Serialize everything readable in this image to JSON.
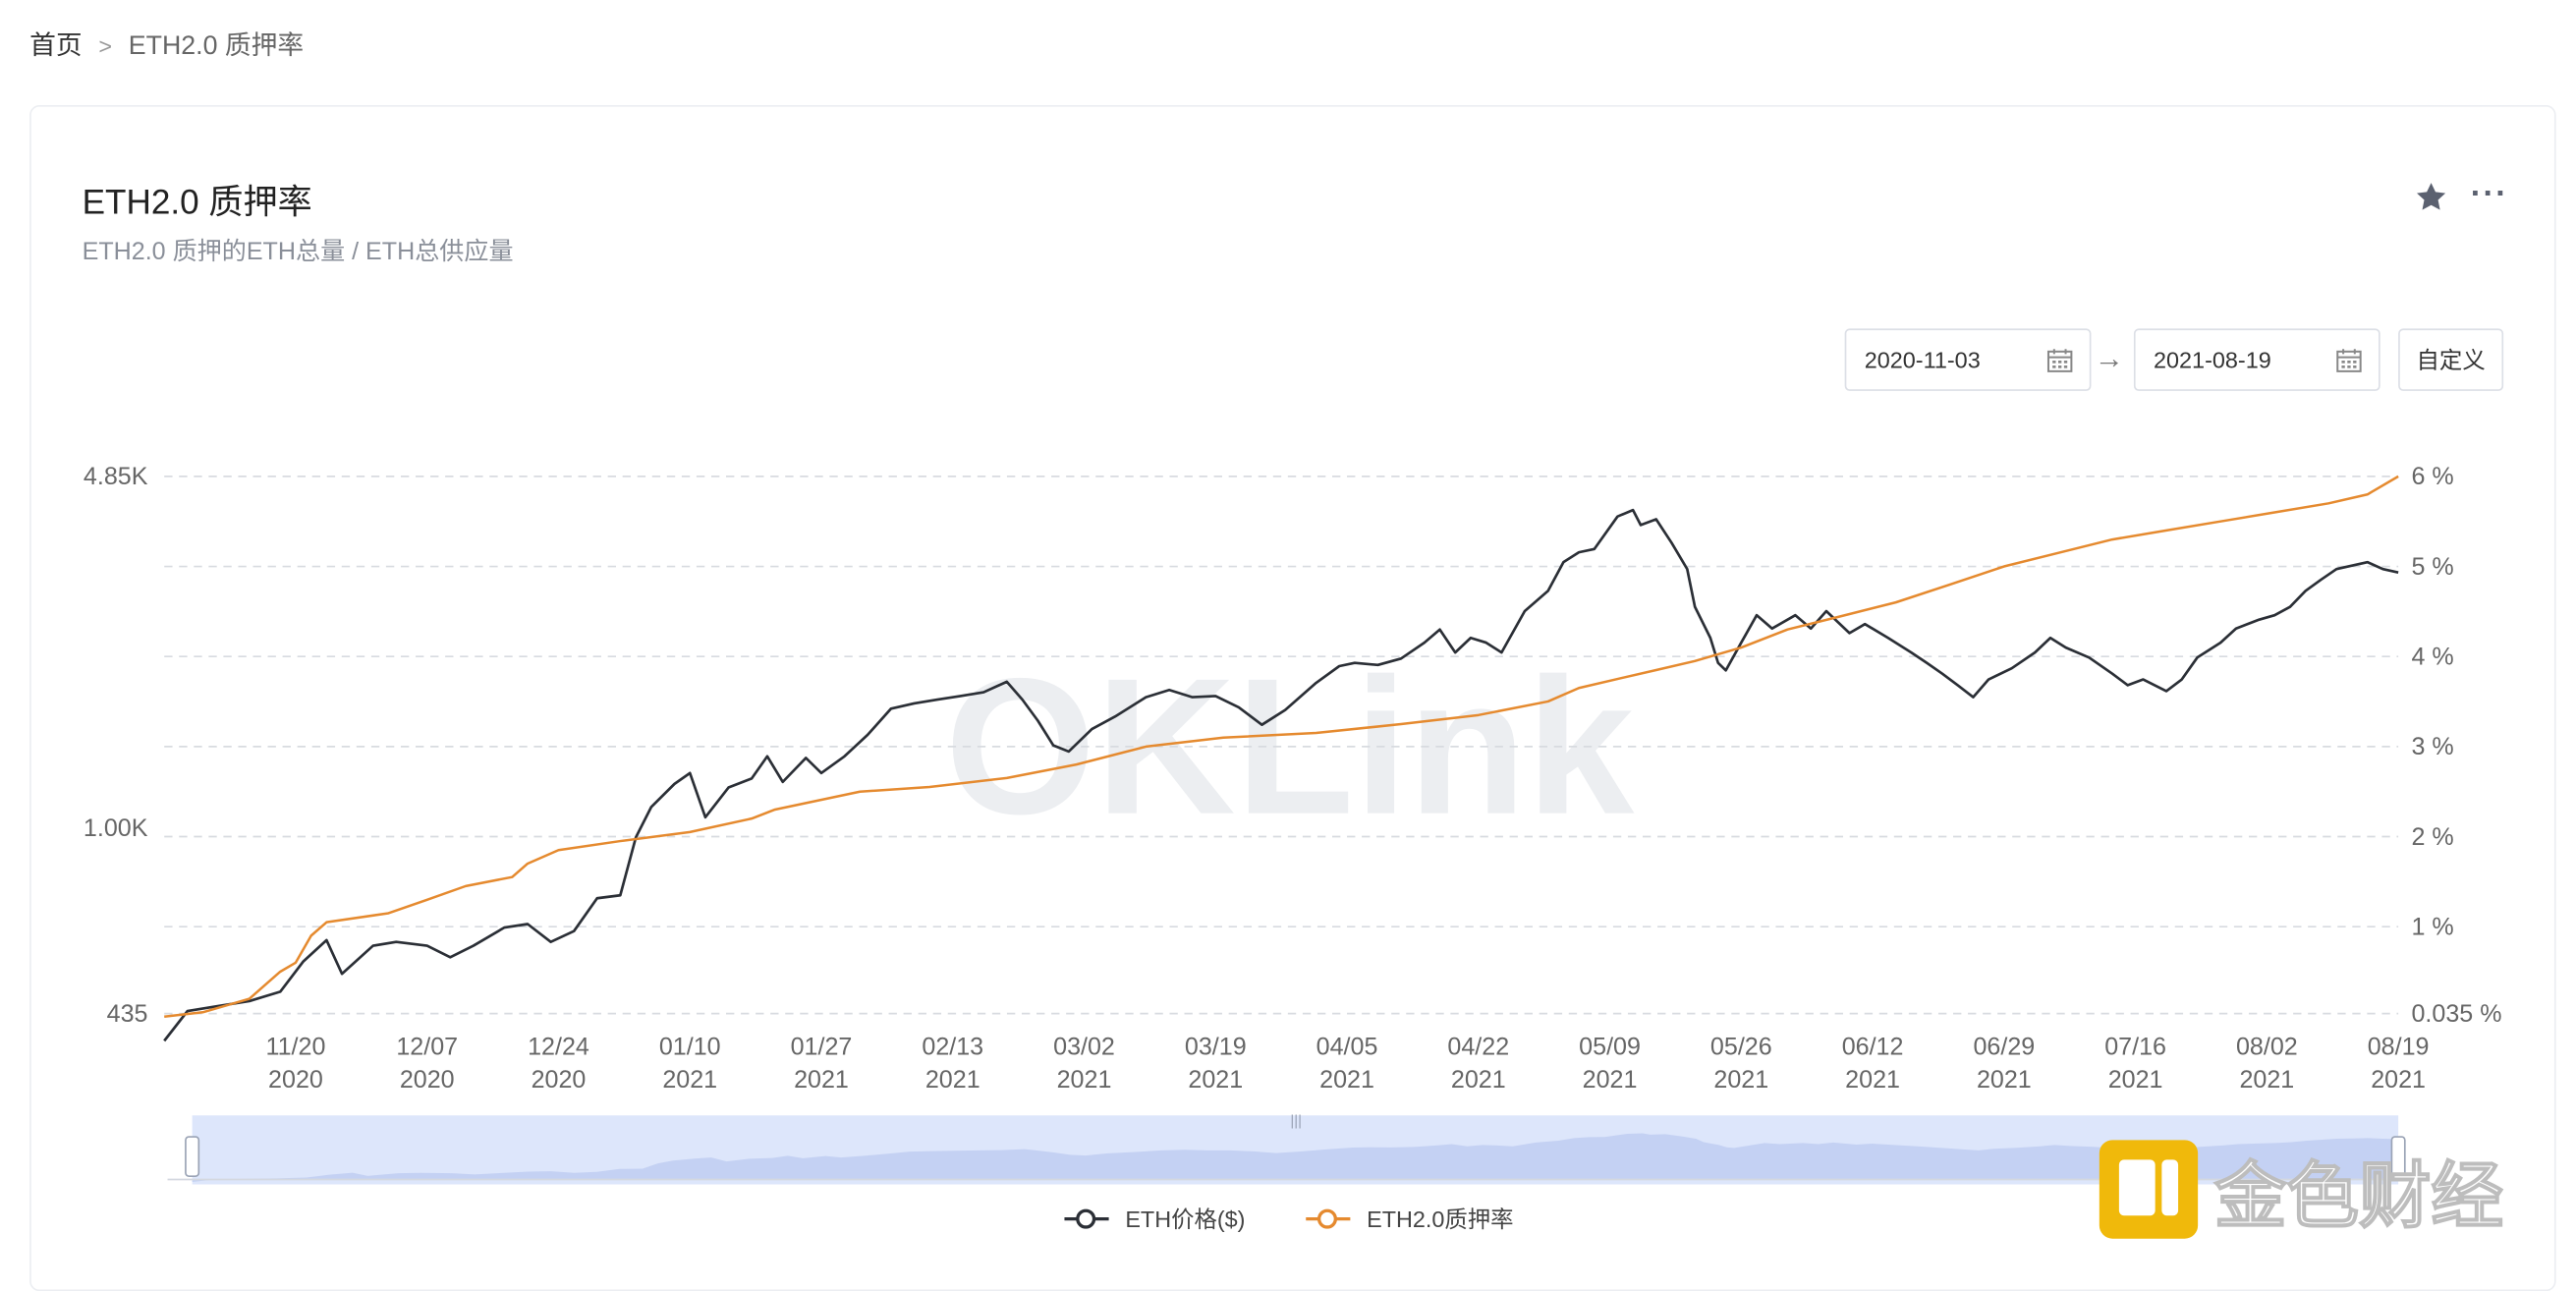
{
  "breadcrumb": {
    "home": "首页",
    "separator": ">",
    "current": "ETH2.0 质押率"
  },
  "card": {
    "title": "ETH2.0 质押率",
    "subtitle": "ETH2.0 质押的ETH总量 / ETH总供应量",
    "more_label": "···"
  },
  "date_range": {
    "start": "2020-11-03",
    "end": "2021-08-19",
    "arrow": "→",
    "custom_label": "自定义"
  },
  "watermark": {
    "text": "OKLink"
  },
  "brand_logo": {
    "text": "金色财经",
    "color": "#f0b90b"
  },
  "colors": {
    "price_line": "#2b2f36",
    "rate_line": "#e58a2f",
    "grid": "#d8dbe0",
    "slider_fill": "#dde6fb"
  },
  "chart_data": {
    "type": "line",
    "title": "ETH2.0 质押率",
    "subtitle": "ETH2.0 质押的ETH总量 / ETH总供应量",
    "x_ticks": [
      {
        "date": "11/20",
        "year": "2020"
      },
      {
        "date": "12/07",
        "year": "2020"
      },
      {
        "date": "12/24",
        "year": "2020"
      },
      {
        "date": "01/10",
        "year": "2021"
      },
      {
        "date": "01/27",
        "year": "2021"
      },
      {
        "date": "02/13",
        "year": "2021"
      },
      {
        "date": "03/02",
        "year": "2021"
      },
      {
        "date": "03/19",
        "year": "2021"
      },
      {
        "date": "04/05",
        "year": "2021"
      },
      {
        "date": "04/22",
        "year": "2021"
      },
      {
        "date": "05/09",
        "year": "2021"
      },
      {
        "date": "05/26",
        "year": "2021"
      },
      {
        "date": "06/12",
        "year": "2021"
      },
      {
        "date": "06/29",
        "year": "2021"
      },
      {
        "date": "07/16",
        "year": "2021"
      },
      {
        "date": "08/02",
        "year": "2021"
      },
      {
        "date": "08/19",
        "year": "2021"
      }
    ],
    "x_range": [
      "2020-11-03",
      "2021-08-19"
    ],
    "y_left": {
      "scale": "log",
      "tick_labels": [
        "4.85K",
        "1.00K",
        "435"
      ],
      "tick_values": [
        4850,
        1000,
        435
      ],
      "range": [
        435,
        4850
      ]
    },
    "y_right": {
      "scale": "linear",
      "tick_labels": [
        "6 %",
        "5 %",
        "4 %",
        "3 %",
        "2 %",
        "1 %",
        "0.035 %"
      ],
      "tick_values": [
        6,
        5,
        4,
        3,
        2,
        1,
        0.035
      ],
      "range": [
        0.035,
        6
      ]
    },
    "grid": true,
    "legend_position": "bottom-center",
    "series": [
      {
        "name": "ETH价格($)",
        "axis": "left",
        "color": "#2b2f36",
        "points": [
          [
            "2020-11-03",
            385
          ],
          [
            "2020-11-06",
            440
          ],
          [
            "2020-11-10",
            450
          ],
          [
            "2020-11-14",
            460
          ],
          [
            "2020-11-18",
            480
          ],
          [
            "2020-11-21",
            550
          ],
          [
            "2020-11-24",
            605
          ],
          [
            "2020-11-26",
            520
          ],
          [
            "2020-11-30",
            590
          ],
          [
            "2020-12-03",
            600
          ],
          [
            "2020-12-07",
            590
          ],
          [
            "2020-12-10",
            560
          ],
          [
            "2020-12-13",
            590
          ],
          [
            "2020-12-17",
            640
          ],
          [
            "2020-12-20",
            650
          ],
          [
            "2020-12-23",
            600
          ],
          [
            "2020-12-26",
            630
          ],
          [
            "2020-12-29",
            730
          ],
          [
            "2021-01-01",
            740
          ],
          [
            "2021-01-03",
            960
          ],
          [
            "2021-01-05",
            1100
          ],
          [
            "2021-01-08",
            1220
          ],
          [
            "2021-01-10",
            1280
          ],
          [
            "2021-01-12",
            1050
          ],
          [
            "2021-01-15",
            1200
          ],
          [
            "2021-01-18",
            1250
          ],
          [
            "2021-01-20",
            1380
          ],
          [
            "2021-01-22",
            1230
          ],
          [
            "2021-01-25",
            1370
          ],
          [
            "2021-01-27",
            1280
          ],
          [
            "2021-01-30",
            1380
          ],
          [
            "2021-02-02",
            1520
          ],
          [
            "2021-02-05",
            1710
          ],
          [
            "2021-02-08",
            1750
          ],
          [
            "2021-02-11",
            1780
          ],
          [
            "2021-02-14",
            1810
          ],
          [
            "2021-02-17",
            1840
          ],
          [
            "2021-02-20",
            1930
          ],
          [
            "2021-02-22",
            1780
          ],
          [
            "2021-02-24",
            1620
          ],
          [
            "2021-02-26",
            1450
          ],
          [
            "2021-02-28",
            1410
          ],
          [
            "2021-03-03",
            1560
          ],
          [
            "2021-03-06",
            1650
          ],
          [
            "2021-03-10",
            1800
          ],
          [
            "2021-03-13",
            1860
          ],
          [
            "2021-03-16",
            1800
          ],
          [
            "2021-03-19",
            1810
          ],
          [
            "2021-03-22",
            1720
          ],
          [
            "2021-03-25",
            1590
          ],
          [
            "2021-03-28",
            1700
          ],
          [
            "2021-04-01",
            1920
          ],
          [
            "2021-04-04",
            2070
          ],
          [
            "2021-04-06",
            2100
          ],
          [
            "2021-04-09",
            2080
          ],
          [
            "2021-04-12",
            2140
          ],
          [
            "2021-04-15",
            2300
          ],
          [
            "2021-04-17",
            2440
          ],
          [
            "2021-04-19",
            2200
          ],
          [
            "2021-04-21",
            2350
          ],
          [
            "2021-04-23",
            2300
          ],
          [
            "2021-04-25",
            2200
          ],
          [
            "2021-04-28",
            2650
          ],
          [
            "2021-05-01",
            2900
          ],
          [
            "2021-05-03",
            3300
          ],
          [
            "2021-05-05",
            3450
          ],
          [
            "2021-05-07",
            3500
          ],
          [
            "2021-05-10",
            4050
          ],
          [
            "2021-05-12",
            4170
          ],
          [
            "2021-05-13",
            3900
          ],
          [
            "2021-05-15",
            4000
          ],
          [
            "2021-05-17",
            3600
          ],
          [
            "2021-05-19",
            3200
          ],
          [
            "2021-05-20",
            2700
          ],
          [
            "2021-05-22",
            2350
          ],
          [
            "2021-05-23",
            2100
          ],
          [
            "2021-05-24",
            2030
          ],
          [
            "2021-05-26",
            2300
          ],
          [
            "2021-05-28",
            2600
          ],
          [
            "2021-05-30",
            2450
          ],
          [
            "2021-06-02",
            2600
          ],
          [
            "2021-06-04",
            2450
          ],
          [
            "2021-06-06",
            2650
          ],
          [
            "2021-06-09",
            2400
          ],
          [
            "2021-06-11",
            2500
          ],
          [
            "2021-06-14",
            2350
          ],
          [
            "2021-06-17",
            2200
          ],
          [
            "2021-06-19",
            2100
          ],
          [
            "2021-06-21",
            2000
          ],
          [
            "2021-06-23",
            1900
          ],
          [
            "2021-06-25",
            1800
          ],
          [
            "2021-06-27",
            1950
          ],
          [
            "2021-06-30",
            2050
          ],
          [
            "2021-07-03",
            2200
          ],
          [
            "2021-07-05",
            2350
          ],
          [
            "2021-07-07",
            2250
          ],
          [
            "2021-07-10",
            2150
          ],
          [
            "2021-07-13",
            2000
          ],
          [
            "2021-07-15",
            1900
          ],
          [
            "2021-07-17",
            1950
          ],
          [
            "2021-07-20",
            1850
          ],
          [
            "2021-07-22",
            1950
          ],
          [
            "2021-07-24",
            2150
          ],
          [
            "2021-07-27",
            2300
          ],
          [
            "2021-07-29",
            2450
          ],
          [
            "2021-08-01",
            2550
          ],
          [
            "2021-08-03",
            2600
          ],
          [
            "2021-08-05",
            2700
          ],
          [
            "2021-08-07",
            2900
          ],
          [
            "2021-08-09",
            3050
          ],
          [
            "2021-08-11",
            3200
          ],
          [
            "2021-08-13",
            3250
          ],
          [
            "2021-08-15",
            3300
          ],
          [
            "2021-08-17",
            3200
          ],
          [
            "2021-08-19",
            3150
          ]
        ]
      },
      {
        "name": "ETH2.0质押率",
        "axis": "right",
        "color": "#e58a2f",
        "points": [
          [
            "2020-11-03",
            0.0
          ],
          [
            "2020-11-08",
            0.05
          ],
          [
            "2020-11-14",
            0.2
          ],
          [
            "2020-11-18",
            0.5
          ],
          [
            "2020-11-20",
            0.6
          ],
          [
            "2020-11-22",
            0.9
          ],
          [
            "2020-11-24",
            1.05
          ],
          [
            "2020-12-02",
            1.15
          ],
          [
            "2020-12-07",
            1.3
          ],
          [
            "2020-12-12",
            1.45
          ],
          [
            "2020-12-18",
            1.55
          ],
          [
            "2020-12-20",
            1.7
          ],
          [
            "2020-12-24",
            1.85
          ],
          [
            "2021-01-01",
            1.95
          ],
          [
            "2021-01-10",
            2.05
          ],
          [
            "2021-01-18",
            2.2
          ],
          [
            "2021-01-21",
            2.3
          ],
          [
            "2021-02-01",
            2.5
          ],
          [
            "2021-02-10",
            2.55
          ],
          [
            "2021-02-20",
            2.65
          ],
          [
            "2021-03-01",
            2.8
          ],
          [
            "2021-03-10",
            3.0
          ],
          [
            "2021-03-20",
            3.1
          ],
          [
            "2021-04-01",
            3.15
          ],
          [
            "2021-04-12",
            3.25
          ],
          [
            "2021-04-22",
            3.35
          ],
          [
            "2021-05-01",
            3.5
          ],
          [
            "2021-05-05",
            3.65
          ],
          [
            "2021-05-10",
            3.75
          ],
          [
            "2021-05-15",
            3.85
          ],
          [
            "2021-05-20",
            3.95
          ],
          [
            "2021-05-26",
            4.1
          ],
          [
            "2021-06-01",
            4.3
          ],
          [
            "2021-06-08",
            4.45
          ],
          [
            "2021-06-15",
            4.6
          ],
          [
            "2021-06-22",
            4.8
          ],
          [
            "2021-06-29",
            5.0
          ],
          [
            "2021-07-06",
            5.15
          ],
          [
            "2021-07-13",
            5.3
          ],
          [
            "2021-07-20",
            5.4
          ],
          [
            "2021-07-27",
            5.5
          ],
          [
            "2021-08-03",
            5.6
          ],
          [
            "2021-08-10",
            5.7
          ],
          [
            "2021-08-15",
            5.8
          ],
          [
            "2021-08-19",
            6.0
          ]
        ]
      }
    ]
  }
}
